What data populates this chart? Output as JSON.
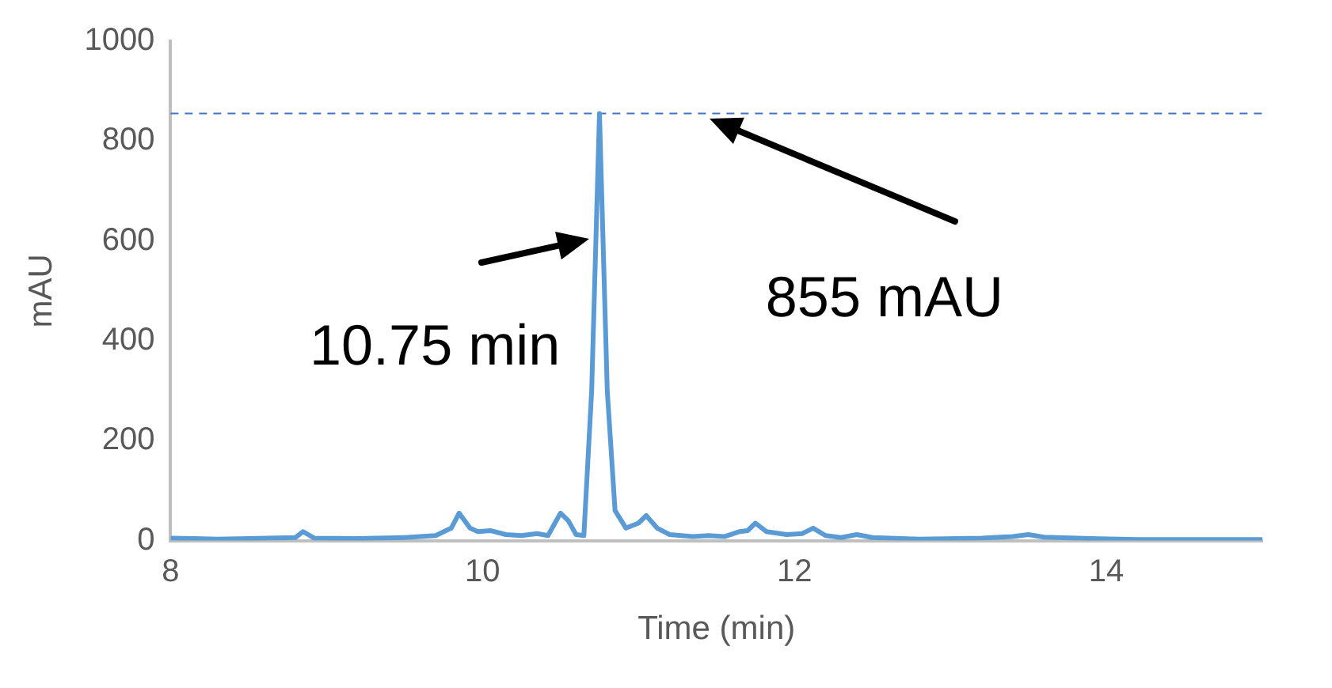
{
  "chart_data": {
    "type": "line",
    "xlabel": "Time (min)",
    "ylabel": "mAU",
    "xlim": [
      8,
      15
    ],
    "xticks": [
      8,
      10,
      12,
      14
    ],
    "ylim": [
      0,
      1000
    ],
    "yticks": [
      0,
      200,
      400,
      600,
      800,
      1000
    ],
    "grid": false,
    "legend": false,
    "marker": "none",
    "line_style": "solid",
    "series": [
      {
        "color": "#5b9bd5",
        "x": [
          8.0,
          8.3,
          8.5,
          8.8,
          8.85,
          8.92,
          9.2,
          9.5,
          9.7,
          9.8,
          9.85,
          9.92,
          9.97,
          10.05,
          10.15,
          10.25,
          10.35,
          10.42,
          10.5,
          10.55,
          10.6,
          10.65,
          10.7,
          10.75,
          10.8,
          10.85,
          10.92,
          11.0,
          11.05,
          11.12,
          11.2,
          11.35,
          11.45,
          11.55,
          11.65,
          11.7,
          11.75,
          11.82,
          11.95,
          12.05,
          12.12,
          12.2,
          12.3,
          12.4,
          12.5,
          12.8,
          13.2,
          13.4,
          13.5,
          13.6,
          13.9,
          14.2,
          15.0
        ],
        "values": [
          5,
          3,
          4,
          6,
          18,
          5,
          4,
          6,
          10,
          25,
          55,
          25,
          18,
          20,
          12,
          10,
          14,
          10,
          55,
          40,
          12,
          10,
          300,
          855,
          300,
          60,
          25,
          35,
          50,
          25,
          12,
          8,
          10,
          8,
          18,
          20,
          35,
          18,
          12,
          14,
          25,
          10,
          6,
          12,
          6,
          3,
          5,
          8,
          12,
          7,
          4,
          2,
          2
        ]
      }
    ],
    "ref_lines": [
      {
        "axis": "y",
        "value": 855,
        "color": "#4472c4",
        "line_style": "dashed"
      }
    ],
    "annotations": [
      {
        "text": "10.75 min",
        "x": 10.68,
        "y": 605
      },
      {
        "text": "855 mAU",
        "x": 11.46,
        "y": 845
      }
    ]
  }
}
